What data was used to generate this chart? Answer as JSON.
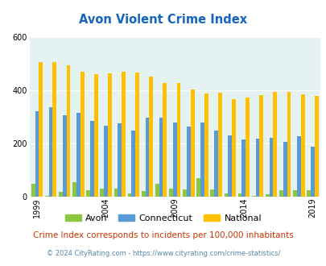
{
  "title": "Avon Violent Crime Index",
  "years": [
    1999,
    2000,
    2001,
    2002,
    2003,
    2004,
    2005,
    2006,
    2007,
    2008,
    2009,
    2010,
    2011,
    2012,
    2013,
    2014,
    2015,
    2016,
    2017,
    2018,
    2019,
    2020,
    2021
  ],
  "avon": [
    50,
    5,
    20,
    55,
    25,
    30,
    30,
    13,
    22,
    50,
    30,
    27,
    70,
    28,
    12,
    12,
    5,
    10,
    25,
    25,
    25,
    0,
    0
  ],
  "connecticut": [
    323,
    336,
    308,
    315,
    285,
    268,
    275,
    250,
    298,
    298,
    280,
    265,
    278,
    248,
    232,
    215,
    220,
    222,
    207,
    228,
    190,
    0,
    0
  ],
  "national": [
    507,
    508,
    494,
    470,
    460,
    463,
    469,
    468,
    452,
    428,
    427,
    405,
    387,
    390,
    368,
    374,
    383,
    394,
    395,
    384,
    380,
    0,
    0
  ],
  "avon_color": "#8dc63f",
  "connecticut_color": "#5b9bd5",
  "national_color": "#ffc000",
  "plot_bg": "#e5f2f2",
  "ylim": [
    0,
    600
  ],
  "yticks": [
    0,
    200,
    400,
    600
  ],
  "xtick_years": [
    1999,
    2004,
    2009,
    2014,
    2019
  ],
  "title_color": "#1565c0",
  "legend_labels": [
    "Avon",
    "Connecticut",
    "National"
  ],
  "footer1": "Crime Index corresponds to incidents per 100,000 inhabitants",
  "footer2": "© 2024 CityRating.com - https://www.cityrating.com/crime-statistics/",
  "footer1_color": "#cc3300",
  "footer2_color": "#5588aa"
}
